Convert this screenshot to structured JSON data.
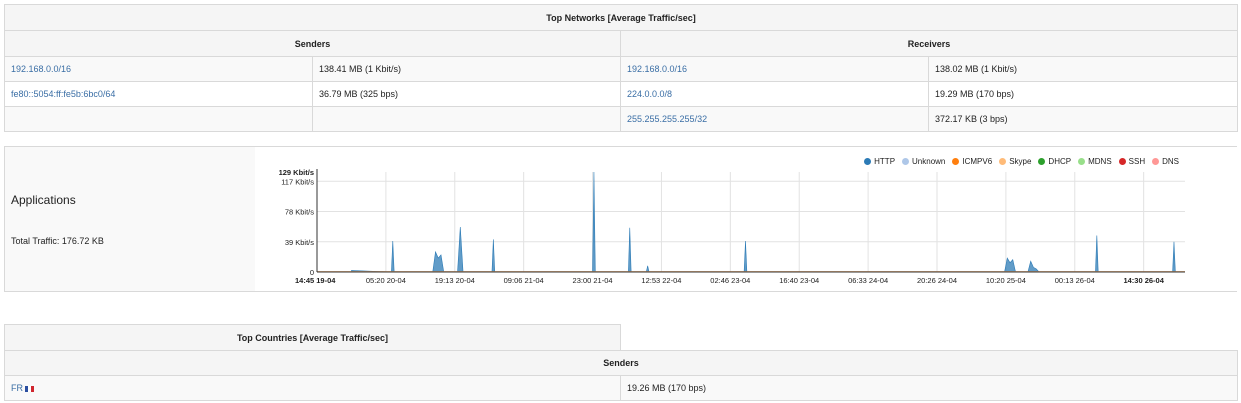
{
  "networks": {
    "title": "Top Networks [Average Traffic/sec]",
    "senders_label": "Senders",
    "receivers_label": "Receivers",
    "rows": [
      {
        "sender": "192.168.0.0/16",
        "sender_value": "138.41 MB (1 Kbit/s)",
        "receiver": "192.168.0.0/16",
        "receiver_value": "138.02 MB (1 Kbit/s)"
      },
      {
        "sender": "fe80::5054:ff:fe5b:6bc0/64",
        "sender_value": "36.79 MB (325 bps)",
        "receiver": "224.0.0.0/8",
        "receiver_value": "19.29 MB (170 bps)"
      },
      {
        "sender": "",
        "sender_value": "",
        "receiver": "255.255.255.255/32",
        "receiver_value": "372.17 KB (3 bps)"
      }
    ]
  },
  "applications": {
    "title": "Applications",
    "total_traffic": "Total Traffic: 176.72 KB"
  },
  "chart_data": {
    "type": "area",
    "legend": [
      {
        "name": "HTTP",
        "color": "#2c7bb6"
      },
      {
        "name": "Unknown",
        "color": "#aec7e8"
      },
      {
        "name": "ICMPV6",
        "color": "#ff7f0e"
      },
      {
        "name": "Skype",
        "color": "#ffbb78"
      },
      {
        "name": "DHCP",
        "color": "#2ca02c"
      },
      {
        "name": "MDNS",
        "color": "#98df8a"
      },
      {
        "name": "SSH",
        "color": "#d62728"
      },
      {
        "name": "DNS",
        "color": "#ff9896"
      }
    ],
    "legend_position": "top-right",
    "y_ticks": [
      "129 Kbit/s",
      "117 Kbit/s",
      "78 Kbit/s",
      "39 Kbit/s",
      "0"
    ],
    "y_tick_values": [
      129,
      117,
      78,
      39,
      0
    ],
    "ylim": [
      0,
      129
    ],
    "x_ticks": [
      "14:45 19-04",
      "05:20 20-04",
      "19:13 20-04",
      "09:06 21-04",
      "23:00 21-04",
      "12:53 22-04",
      "02:46 23-04",
      "16:40 23-04",
      "06:33 24-04",
      "20:26 24-04",
      "10:20 25-04",
      "00:13 26-04",
      "14:30 26-04"
    ],
    "x_tick_values": [
      0,
      0.5,
      1,
      1.5,
      2,
      2.5,
      3,
      3.5,
      4,
      4.5,
      5,
      5.5,
      6
    ],
    "xlim": [
      0,
      6.3
    ],
    "grid": true,
    "series": [
      {
        "name": "HTTP",
        "x": [
          0.25,
          0.54,
          0.55,
          0.56,
          0.84,
          0.86,
          0.88,
          0.9,
          0.92,
          1.02,
          1.04,
          1.06,
          1.27,
          1.28,
          1.29,
          2.0,
          2.01,
          2.02,
          2.26,
          2.27,
          2.28,
          2.39,
          2.4,
          2.41,
          3.1,
          3.11,
          3.12,
          4.99,
          5.01,
          5.03,
          5.05,
          5.07,
          5.16,
          5.18,
          5.2,
          5.22,
          5.24,
          5.65,
          5.66,
          5.67,
          6.21,
          6.22,
          6.23
        ],
        "y": [
          2,
          0,
          40,
          0,
          0,
          26,
          18,
          22,
          0,
          0,
          58,
          0,
          0,
          42,
          0,
          0,
          129,
          0,
          0,
          57,
          0,
          0,
          8,
          0,
          0,
          40,
          0,
          0,
          18,
          12,
          16,
          0,
          0,
          14,
          6,
          4,
          0,
          0,
          47,
          0,
          0,
          39,
          0
        ]
      }
    ]
  },
  "countries": {
    "title": "Top Countries [Average Traffic/sec]",
    "senders_label": "Senders",
    "rows": [
      {
        "country": "FR",
        "value": "19.26 MB (170 bps)"
      }
    ]
  }
}
